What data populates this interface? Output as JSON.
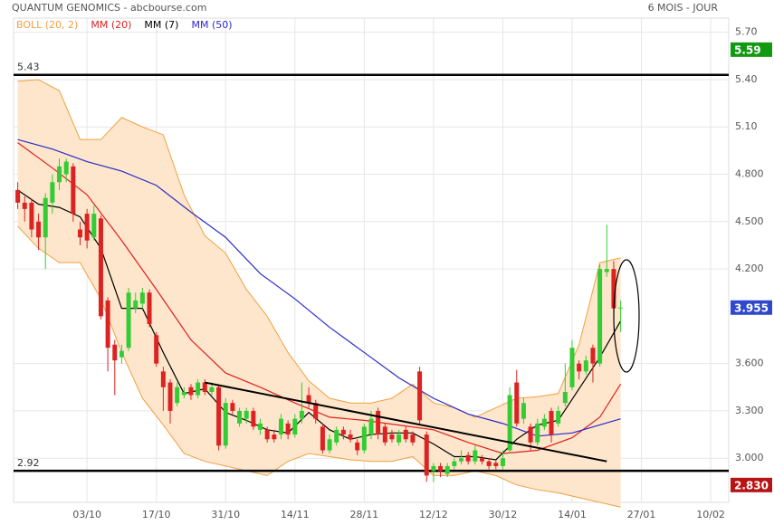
{
  "chart_data": {
    "type": "candlestick",
    "title": "QUANTUM GENOMICS - abcbourse.com",
    "period": "6 MOIS - JOUR",
    "xlim": [
      -0.6,
      102.6
    ],
    "ylim": [
      2.72,
      5.79
    ],
    "grid": true,
    "xticks": [
      {
        "value": 10,
        "label": "03/10"
      },
      {
        "value": 20,
        "label": "17/10"
      },
      {
        "value": 30,
        "label": "31/10"
      },
      {
        "value": 40,
        "label": "14/11"
      },
      {
        "value": 50,
        "label": "28/11"
      },
      {
        "value": 60,
        "label": "12/12"
      },
      {
        "value": 70,
        "label": "30/12"
      },
      {
        "value": 80,
        "label": "14/01"
      },
      {
        "value": 90,
        "label": "27/01"
      },
      {
        "value": 100,
        "label": "10/02"
      }
    ],
    "yticks": [
      {
        "value": 3.0,
        "label": "3.000"
      },
      {
        "value": 3.3,
        "label": "3.300"
      },
      {
        "value": 3.6,
        "label": "3.600"
      },
      {
        "value": 4.2,
        "label": "4.200"
      },
      {
        "value": 4.5,
        "label": "4.500"
      },
      {
        "value": 4.8,
        "label": "4.800"
      },
      {
        "value": 5.1,
        "label": "5.10"
      },
      {
        "value": 5.4,
        "label": "5.40"
      },
      {
        "value": 5.7,
        "label": "5.70"
      }
    ],
    "up_color": "#33cc33",
    "down_color": "#dd2222",
    "candles": {
      "x": [
        0,
        1,
        2,
        3,
        4,
        5,
        6,
        7,
        8,
        9,
        10,
        11,
        12,
        13,
        14,
        15,
        16,
        17,
        18,
        19,
        20,
        21,
        22,
        23,
        24,
        25,
        26,
        27,
        28,
        29,
        30,
        31,
        32,
        33,
        34,
        35,
        36,
        37,
        38,
        39,
        40,
        41,
        42,
        43,
        44,
        45,
        46,
        47,
        48,
        49,
        50,
        51,
        52,
        53,
        54,
        55,
        56,
        57,
        58,
        59,
        60,
        61,
        62,
        63,
        64,
        65,
        66,
        67,
        68,
        69,
        70,
        71,
        72,
        73,
        74,
        75,
        76,
        77,
        78,
        79,
        80,
        81,
        82,
        83,
        84,
        85,
        86,
        87
      ],
      "open": [
        4.7,
        4.62,
        4.62,
        4.5,
        4.4,
        4.62,
        4.75,
        4.8,
        4.85,
        4.45,
        4.55,
        4.4,
        4.52,
        4.0,
        3.72,
        3.64,
        3.7,
        3.95,
        3.98,
        4.05,
        3.78,
        3.55,
        3.48,
        3.35,
        3.4,
        3.45,
        3.4,
        3.48,
        3.42,
        3.45,
        3.08,
        3.35,
        3.22,
        3.25,
        3.3,
        3.18,
        3.18,
        3.15,
        3.15,
        3.22,
        3.15,
        3.25,
        3.4,
        3.35,
        3.2,
        3.05,
        3.1,
        3.18,
        3.15,
        3.1,
        3.05,
        3.15,
        3.3,
        3.2,
        3.15,
        3.1,
        3.18,
        3.15,
        3.55,
        3.15,
        2.92,
        2.95,
        2.9,
        2.95,
        2.98,
        3.02,
        2.98,
        3.0,
        2.98,
        2.97,
        2.95,
        3.05,
        3.48,
        3.25,
        3.2,
        3.1,
        3.2,
        3.3,
        3.22,
        3.35,
        3.45,
        3.6,
        3.55,
        3.7,
        3.6,
        4.18,
        4.2,
        3.95
      ],
      "high": [
        4.75,
        4.66,
        4.64,
        4.55,
        4.68,
        4.8,
        4.9,
        4.9,
        4.87,
        4.5,
        4.58,
        4.6,
        4.54,
        4.02,
        3.75,
        3.72,
        4.08,
        4.05,
        4.08,
        4.07,
        3.8,
        3.58,
        3.5,
        3.48,
        3.45,
        3.47,
        3.5,
        3.5,
        3.48,
        3.46,
        3.38,
        3.37,
        3.32,
        3.32,
        3.32,
        3.25,
        3.2,
        3.18,
        3.28,
        3.24,
        3.28,
        3.48,
        3.45,
        3.37,
        3.22,
        3.15,
        3.2,
        3.2,
        3.18,
        3.12,
        3.22,
        3.3,
        3.32,
        3.22,
        3.18,
        3.18,
        3.2,
        3.17,
        3.58,
        3.17,
        2.97,
        2.97,
        2.97,
        3.0,
        3.05,
        3.04,
        3.08,
        3.02,
        3.0,
        2.99,
        3.05,
        3.45,
        3.56,
        3.38,
        3.22,
        3.25,
        3.28,
        3.32,
        3.33,
        3.6,
        3.75,
        3.62,
        3.65,
        3.72,
        4.23,
        4.48,
        4.25,
        4.0
      ],
      "low": [
        4.58,
        4.5,
        4.4,
        4.32,
        4.2,
        4.55,
        4.7,
        4.75,
        4.5,
        4.35,
        4.33,
        4.38,
        3.88,
        3.55,
        3.4,
        3.6,
        3.68,
        3.92,
        3.95,
        3.83,
        3.58,
        3.3,
        3.22,
        3.33,
        3.38,
        3.37,
        3.38,
        3.4,
        3.4,
        3.05,
        3.06,
        3.28,
        3.2,
        3.22,
        3.18,
        3.15,
        3.1,
        3.1,
        3.12,
        3.12,
        3.13,
        3.22,
        3.32,
        3.22,
        3.03,
        3.03,
        3.08,
        3.12,
        3.1,
        3.02,
        3.03,
        3.12,
        3.12,
        3.08,
        3.1,
        3.08,
        3.1,
        3.08,
        3.22,
        2.85,
        2.85,
        2.88,
        2.88,
        2.93,
        2.96,
        2.96,
        2.96,
        2.96,
        2.93,
        2.93,
        2.93,
        3.03,
        3.2,
        3.22,
        3.05,
        3.08,
        3.18,
        3.1,
        3.2,
        3.33,
        3.43,
        3.5,
        3.53,
        3.48,
        3.58,
        4.15,
        3.92,
        3.8
      ],
      "close": [
        4.62,
        4.58,
        4.45,
        4.4,
        4.65,
        4.75,
        4.85,
        4.88,
        4.55,
        4.4,
        4.38,
        4.55,
        3.9,
        3.7,
        3.62,
        3.68,
        4.05,
        4.0,
        4.05,
        3.85,
        3.6,
        3.45,
        3.3,
        3.45,
        3.42,
        3.4,
        3.48,
        3.42,
        3.45,
        3.08,
        3.35,
        3.3,
        3.3,
        3.3,
        3.2,
        3.22,
        3.12,
        3.12,
        3.25,
        3.15,
        3.25,
        3.3,
        3.35,
        3.25,
        3.05,
        3.12,
        3.18,
        3.15,
        3.12,
        3.05,
        3.2,
        3.25,
        3.15,
        3.1,
        3.12,
        3.15,
        3.12,
        3.1,
        3.24,
        2.89,
        2.95,
        2.92,
        2.95,
        2.98,
        3.0,
        2.98,
        3.05,
        2.98,
        2.95,
        2.95,
        3.0,
        3.4,
        3.22,
        3.35,
        3.1,
        3.22,
        3.25,
        3.15,
        3.3,
        3.42,
        3.7,
        3.55,
        3.62,
        3.6,
        4.2,
        4.2,
        3.95,
        3.955
      ]
    },
    "bollinger": {
      "name": "BOLL (20, 2)",
      "color": "#f0a040",
      "fill": "#fde6cc",
      "x": [
        0,
        3,
        6,
        9,
        12,
        15,
        18,
        21,
        24,
        27,
        30,
        33,
        36,
        39,
        42,
        45,
        48,
        51,
        54,
        57,
        60,
        63,
        66,
        69,
        72,
        75,
        78,
        81,
        84,
        87
      ],
      "upper": [
        5.39,
        5.4,
        5.33,
        5.02,
        5.02,
        5.16,
        5.1,
        5.05,
        4.67,
        4.41,
        4.3,
        4.07,
        3.9,
        3.67,
        3.49,
        3.38,
        3.35,
        3.35,
        3.38,
        3.47,
        3.35,
        3.32,
        3.26,
        3.32,
        3.38,
        3.39,
        3.41,
        3.72,
        4.24,
        4.27
      ],
      "lower": [
        4.47,
        4.33,
        4.24,
        4.24,
        4.01,
        3.67,
        3.38,
        3.21,
        3.03,
        2.98,
        2.95,
        2.92,
        2.89,
        2.98,
        3.03,
        3.01,
        2.99,
        2.98,
        2.98,
        3.01,
        2.89,
        2.89,
        2.92,
        2.89,
        2.83,
        2.8,
        2.78,
        2.75,
        2.72,
        2.69
      ]
    },
    "series": [
      {
        "name": "MM (20)",
        "color": "#e02020",
        "x": [
          0,
          5,
          10,
          15,
          20,
          25,
          30,
          35,
          40,
          45,
          50,
          55,
          60,
          65,
          70,
          75,
          80,
          84,
          87
        ],
        "values": [
          5.0,
          4.84,
          4.67,
          4.38,
          4.07,
          3.75,
          3.54,
          3.45,
          3.35,
          3.26,
          3.24,
          3.21,
          3.18,
          3.1,
          3.03,
          3.05,
          3.13,
          3.26,
          3.47
        ]
      },
      {
        "name": "MM (7)",
        "color": "#000000",
        "x": [
          0,
          3,
          6,
          9,
          12,
          15,
          18,
          21,
          24,
          27,
          30,
          33,
          36,
          39,
          42,
          45,
          48,
          51,
          54,
          57,
          60,
          63,
          66,
          69,
          72,
          75,
          78,
          81,
          84,
          87
        ],
        "values": [
          4.7,
          4.61,
          4.59,
          4.53,
          4.33,
          3.95,
          3.95,
          3.67,
          3.41,
          3.44,
          3.29,
          3.24,
          3.18,
          3.16,
          3.29,
          3.18,
          3.12,
          3.15,
          3.16,
          3.16,
          3.09,
          3.01,
          3.01,
          2.99,
          3.12,
          3.21,
          3.24,
          3.44,
          3.64,
          3.87
        ]
      },
      {
        "name": "MM (50)",
        "color": "#2a2ac8",
        "x": [
          0,
          5,
          10,
          15,
          20,
          25,
          30,
          35,
          40,
          45,
          50,
          55,
          60,
          65,
          70,
          75,
          80,
          87
        ],
        "values": [
          5.02,
          4.96,
          4.88,
          4.82,
          4.73,
          4.56,
          4.4,
          4.17,
          4.01,
          3.83,
          3.67,
          3.51,
          3.38,
          3.28,
          3.22,
          3.14,
          3.16,
          3.25
        ]
      }
    ],
    "levels": [
      5.43,
      2.92
    ],
    "trendline": {
      "x": [
        27,
        85
      ],
      "values": [
        3.48,
        2.98
      ]
    },
    "price_badges": [
      {
        "value": 5.59,
        "color": "#119911"
      },
      {
        "value": 3.955,
        "color": "#2f48cc"
      },
      {
        "value": 2.83,
        "label": "2.830",
        "color": "#b81414"
      }
    ]
  }
}
